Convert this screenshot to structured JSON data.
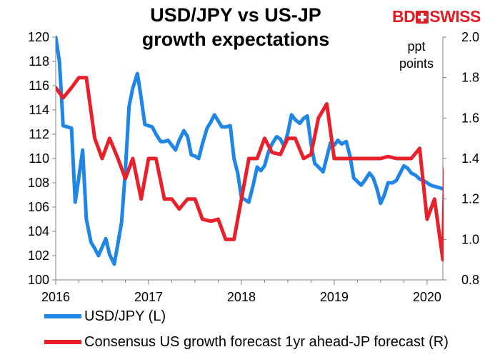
{
  "brand": {
    "logo_text_left": "BD",
    "logo_text_right": "SWISS"
  },
  "chart_data": {
    "type": "line",
    "title_line1": "USD/JPY vs US-JP",
    "title_line2": "growth expectations",
    "right_axis_note_line1": "ppt",
    "right_axis_note_line2": "points",
    "x_tick_labels": [
      "2016",
      "2017",
      "2018",
      "2019",
      "2020"
    ],
    "x_range": [
      2016.0,
      2020.17
    ],
    "left_axis": {
      "min": 100,
      "max": 120,
      "step": 2,
      "tick_labels": [
        "100",
        "102",
        "104",
        "106",
        "108",
        "110",
        "112",
        "114",
        "116",
        "118",
        "120"
      ]
    },
    "right_axis": {
      "min": 0.8,
      "max": 2.0,
      "step": 0.2,
      "tick_labels": [
        "0.8",
        "1.0",
        "1.2",
        "1.4",
        "1.6",
        "1.8",
        "2.0"
      ]
    },
    "grid": false,
    "legend_position": "bottom",
    "series": [
      {
        "name": "USD/JPY (L)",
        "axis": "left",
        "color": "#1f86e6",
        "x": [
          2016.0,
          2016.04,
          2016.08,
          2016.13,
          2016.17,
          2016.21,
          2016.25,
          2016.29,
          2016.33,
          2016.38,
          2016.42,
          2016.46,
          2016.5,
          2016.54,
          2016.58,
          2016.63,
          2016.67,
          2016.71,
          2016.75,
          2016.79,
          2016.83,
          2016.88,
          2016.92,
          2016.96,
          2017.0,
          2017.04,
          2017.08,
          2017.13,
          2017.17,
          2017.21,
          2017.25,
          2017.29,
          2017.33,
          2017.38,
          2017.42,
          2017.46,
          2017.5,
          2017.54,
          2017.58,
          2017.63,
          2017.67,
          2017.71,
          2017.75,
          2017.79,
          2017.83,
          2017.88,
          2017.92,
          2017.96,
          2018.0,
          2018.04,
          2018.08,
          2018.13,
          2018.17,
          2018.21,
          2018.25,
          2018.29,
          2018.33,
          2018.38,
          2018.42,
          2018.46,
          2018.5,
          2018.54,
          2018.58,
          2018.63,
          2018.67,
          2018.71,
          2018.75,
          2018.79,
          2018.83,
          2018.88,
          2018.92,
          2018.96,
          2019.0,
          2019.04,
          2019.08,
          2019.13,
          2019.17,
          2019.21,
          2019.25,
          2019.29,
          2019.33,
          2019.38,
          2019.42,
          2019.46,
          2019.5,
          2019.54,
          2019.58,
          2019.63,
          2019.67,
          2019.71,
          2019.75,
          2019.79,
          2019.83,
          2019.88,
          2019.92,
          2019.96,
          2020.0,
          2020.04,
          2020.08,
          2020.13,
          2020.17
        ],
        "values": [
          120.0,
          118.0,
          112.7,
          112.6,
          112.5,
          106.4,
          108.5,
          110.7,
          105.0,
          103.1,
          102.6,
          102.0,
          102.7,
          103.4,
          102.1,
          101.3,
          103.0,
          104.8,
          109.0,
          114.3,
          115.8,
          117.0,
          115.0,
          112.8,
          112.7,
          112.6,
          112.0,
          111.4,
          111.4,
          111.5,
          111.1,
          110.7,
          111.5,
          112.3,
          111.8,
          110.3,
          110.2,
          110.0,
          111.2,
          112.5,
          113.0,
          113.6,
          113.1,
          112.6,
          112.6,
          112.7,
          110.0,
          108.8,
          106.8,
          106.6,
          106.4,
          107.9,
          109.3,
          109.0,
          109.4,
          110.5,
          111.2,
          111.8,
          111.6,
          111.0,
          112.1,
          113.6,
          113.2,
          112.9,
          113.3,
          113.5,
          111.2,
          109.6,
          109.3,
          108.9,
          110.1,
          111.3,
          111.1,
          111.5,
          111.2,
          111.4,
          110.2,
          108.4,
          108.1,
          107.8,
          108.2,
          108.8,
          108.4,
          107.5,
          106.3,
          107.0,
          108.0,
          108.0,
          108.2,
          108.8,
          109.4,
          109.2,
          108.8,
          108.6,
          108.3,
          108.2,
          108.0,
          107.8,
          107.7,
          107.6,
          107.5
        ]
      },
      {
        "name": "Consensus US growth forecast 1yr ahead-JP forecast (R)",
        "axis": "right",
        "color": "#e8202a",
        "x": [
          2016.0,
          2016.08,
          2016.17,
          2016.25,
          2016.33,
          2016.42,
          2016.5,
          2016.58,
          2016.67,
          2016.75,
          2016.83,
          2016.92,
          2017.0,
          2017.08,
          2017.17,
          2017.25,
          2017.33,
          2017.42,
          2017.5,
          2017.58,
          2017.67,
          2017.75,
          2017.83,
          2017.92,
          2018.0,
          2018.08,
          2018.17,
          2018.25,
          2018.33,
          2018.42,
          2018.5,
          2018.58,
          2018.67,
          2018.75,
          2018.83,
          2018.92,
          2019.0,
          2019.08,
          2019.17,
          2019.25,
          2019.33,
          2019.42,
          2019.5,
          2019.58,
          2019.67,
          2019.75,
          2019.83,
          2019.92,
          2020.0,
          2020.08,
          2020.17,
          2020.19
        ],
        "values": [
          1.75,
          1.7,
          1.75,
          1.8,
          1.8,
          1.5,
          1.4,
          1.5,
          1.4,
          1.3,
          1.4,
          1.2,
          1.4,
          1.4,
          1.2,
          1.2,
          1.15,
          1.2,
          1.2,
          1.1,
          1.09,
          1.1,
          1.0,
          1.0,
          1.2,
          1.4,
          1.4,
          1.5,
          1.43,
          1.42,
          1.5,
          1.5,
          1.4,
          1.42,
          1.6,
          1.67,
          1.4,
          1.4,
          1.4,
          1.4,
          1.4,
          1.4,
          1.4,
          1.41,
          1.4,
          1.4,
          1.4,
          1.45,
          1.1,
          1.2,
          0.9,
          1.35
        ]
      }
    ]
  }
}
